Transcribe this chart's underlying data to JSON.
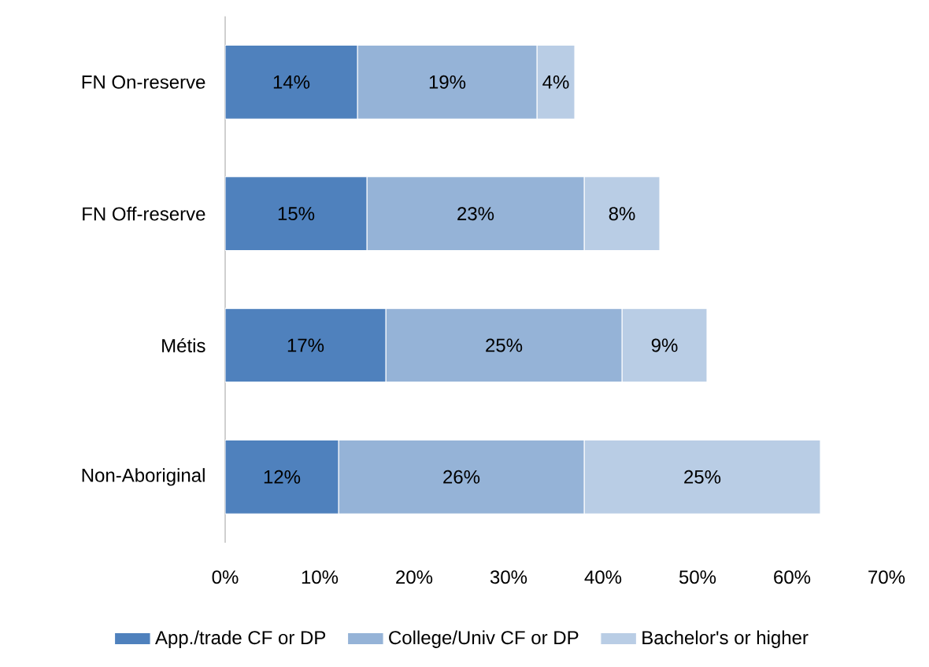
{
  "chart_data": {
    "type": "bar",
    "orientation": "horizontal",
    "stacked": true,
    "categories": [
      "FN On-reserve",
      "FN Off-reserve",
      "Métis",
      "Non-Aboriginal"
    ],
    "series": [
      {
        "name": "App./trade CF or DP",
        "color": "#4f81bd",
        "values": [
          14,
          15,
          17,
          12
        ],
        "value_labels": [
          "14%",
          "15%",
          "17%",
          "12%"
        ]
      },
      {
        "name": "College/Univ CF or DP",
        "color": "#95b3d7",
        "values": [
          19,
          23,
          25,
          26
        ],
        "value_labels": [
          "19%",
          "23%",
          "25%",
          "26%"
        ]
      },
      {
        "name": "Bachelor's or higher",
        "color": "#b9cde5",
        "values": [
          4,
          8,
          9,
          25
        ],
        "value_labels": [
          "4%",
          "8%",
          "9%",
          "25%"
        ]
      }
    ],
    "xlim": [
      0,
      70
    ],
    "xticks": [
      {
        "value": 0,
        "label": "0%"
      },
      {
        "value": 10,
        "label": "10%"
      },
      {
        "value": 20,
        "label": "20%"
      },
      {
        "value": 30,
        "label": "30%"
      },
      {
        "value": 40,
        "label": "40%"
      },
      {
        "value": 50,
        "label": "50%"
      },
      {
        "value": 60,
        "label": "60%"
      },
      {
        "value": 70,
        "label": "70%"
      }
    ],
    "legend": "bottom"
  }
}
